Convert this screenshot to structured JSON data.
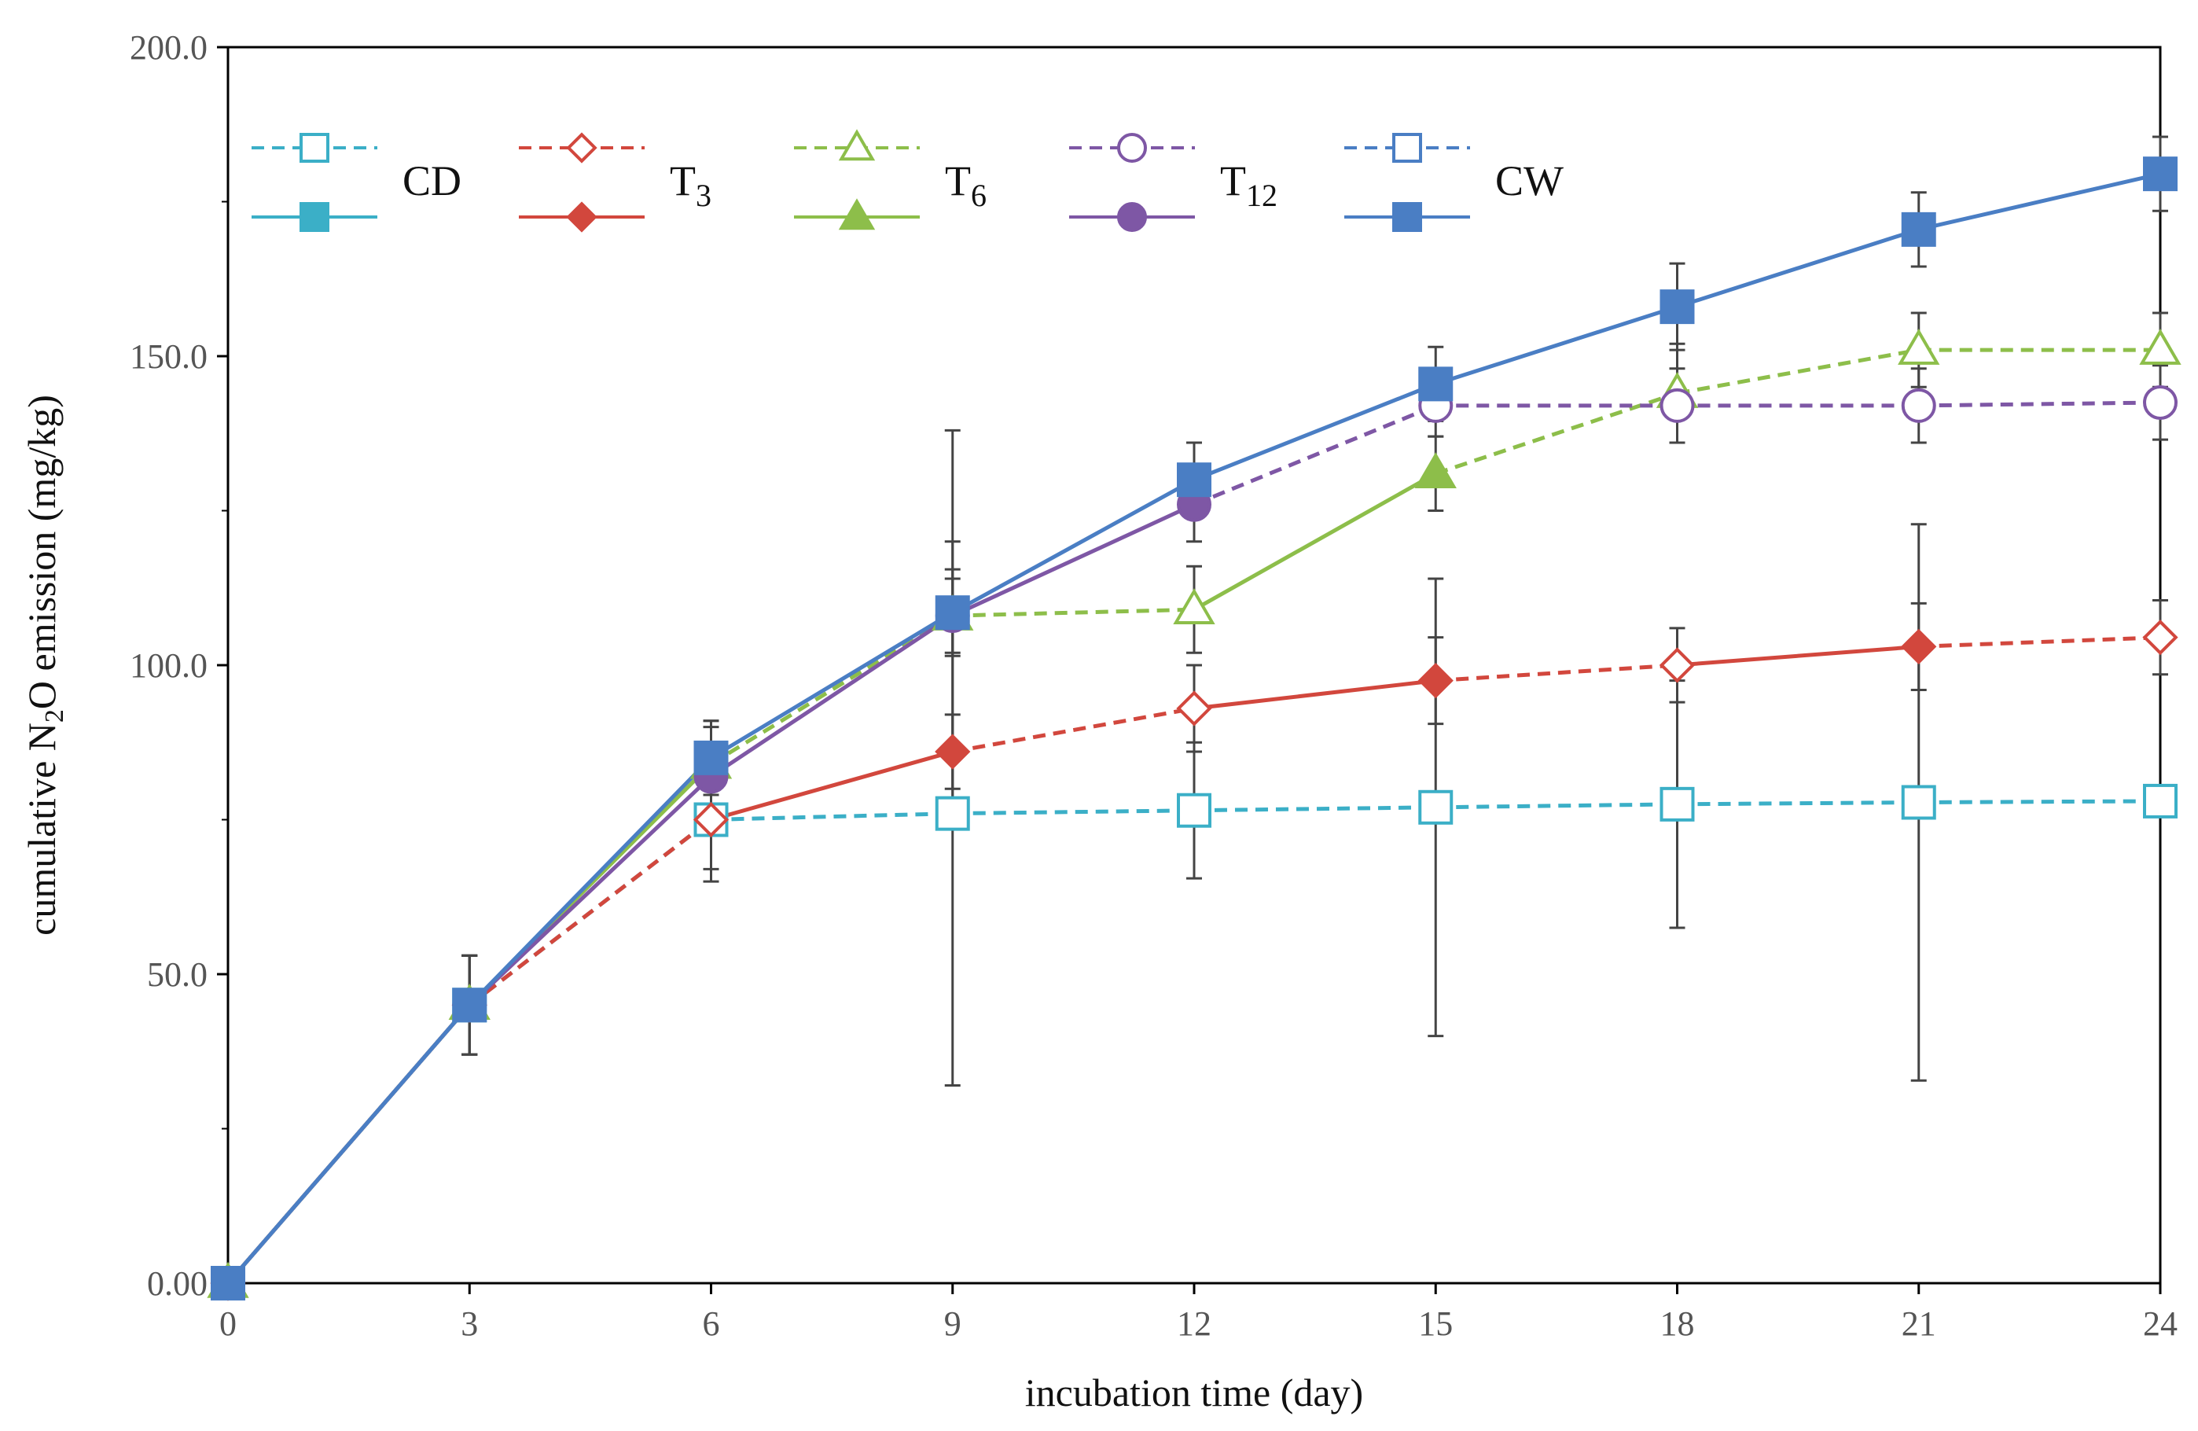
{
  "chart_data": {
    "type": "line",
    "title": "",
    "xlabel": "incubation time (day)",
    "ylabel_parts": [
      "cumulative N",
      "2",
      "O emission (mg/kg)"
    ],
    "x": [
      0,
      3,
      6,
      9,
      12,
      15,
      18,
      21,
      24
    ],
    "x_tick_labels": [
      "0",
      "3",
      "6",
      "9",
      "12",
      "15",
      "18",
      "21",
      "24"
    ],
    "y_tick_values": [
      0,
      50,
      100,
      150,
      200
    ],
    "y_tick_labels": [
      "0.00",
      "50.0",
      "100.0",
      "150.0",
      "200.0"
    ],
    "xlim": [
      0,
      24
    ],
    "ylim": [
      0,
      200
    ],
    "grid": false,
    "legend_position": "top-left inside",
    "legend": [
      {
        "label": "CD",
        "sub": "",
        "color": "#3BAFC7"
      },
      {
        "label": "T",
        "sub": "3",
        "color": "#D2473D"
      },
      {
        "label": "T",
        "sub": "6",
        "color": "#8DBE4A"
      },
      {
        "label": "T",
        "sub": "12",
        "color": "#7E57A5"
      },
      {
        "label": "CW",
        "sub": "",
        "color": "#4A7EC4"
      }
    ],
    "series": [
      {
        "name": "CD",
        "color": "#3BAFC7",
        "marker": "square",
        "segments": "dashed",
        "values": [
          0,
          45,
          75,
          76,
          76.5,
          77,
          77.5,
          77.8,
          78
        ],
        "errors": [
          0,
          8,
          10,
          44,
          11,
          37,
          20,
          45,
          0
        ]
      },
      {
        "name": "T3",
        "color": "#D2473D",
        "marker": "diamond",
        "segments": "mixed",
        "filled": [
          true,
          true,
          false,
          true,
          false,
          true,
          false,
          true,
          false
        ],
        "values": [
          0,
          45,
          75,
          86,
          93,
          97.5,
          100,
          103,
          104.5
        ],
        "errors": [
          0,
          8,
          8,
          6,
          7,
          7,
          6,
          7,
          6
        ]
      },
      {
        "name": "T6",
        "color": "#8DBE4A",
        "marker": "triangle",
        "segments": "mixed",
        "filled": [
          true,
          true,
          true,
          false,
          false,
          true,
          false,
          false,
          false
        ],
        "values": [
          0,
          45,
          84,
          108,
          109,
          131,
          144,
          151,
          151
        ],
        "errors": [
          0,
          8,
          7,
          6,
          7,
          6,
          8,
          6,
          6
        ]
      },
      {
        "name": "T12",
        "color": "#7E57A5",
        "marker": "circle",
        "segments": "mixed",
        "filled": [
          true,
          true,
          true,
          true,
          true,
          false,
          false,
          false,
          false
        ],
        "values": [
          0,
          45,
          82,
          108,
          126,
          142,
          142,
          142,
          142.5
        ],
        "errors": [
          0,
          8,
          8,
          30,
          6,
          5,
          6,
          6,
          6
        ]
      },
      {
        "name": "CW",
        "color": "#4A7EC4",
        "marker": "square",
        "segments": "solid",
        "filled": [
          true,
          true,
          true,
          true,
          true,
          true,
          true,
          true,
          true
        ],
        "values": [
          0,
          45,
          85,
          108.5,
          130,
          145.5,
          158,
          170.5,
          179.5
        ],
        "errors": [
          0,
          8,
          6,
          7,
          6,
          6,
          7,
          6,
          6
        ]
      }
    ]
  }
}
